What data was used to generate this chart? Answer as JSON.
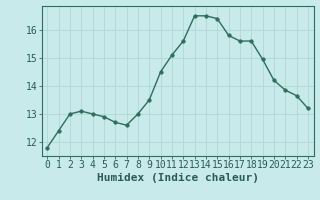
{
  "x": [
    0,
    1,
    2,
    3,
    4,
    5,
    6,
    7,
    8,
    9,
    10,
    11,
    12,
    13,
    14,
    15,
    16,
    17,
    18,
    19,
    20,
    21,
    22,
    23
  ],
  "y": [
    11.8,
    12.4,
    13.0,
    13.1,
    13.0,
    12.9,
    12.7,
    12.6,
    13.0,
    13.5,
    14.5,
    15.1,
    15.6,
    16.5,
    16.5,
    16.4,
    15.8,
    15.6,
    15.6,
    14.95,
    14.2,
    13.85,
    13.65,
    13.2
  ],
  "xlabel": "Humidex (Indice chaleur)",
  "ylim": [
    11.5,
    16.85
  ],
  "xlim": [
    -0.5,
    23.5
  ],
  "yticks": [
    12,
    13,
    14,
    15,
    16
  ],
  "xticks": [
    0,
    1,
    2,
    3,
    4,
    5,
    6,
    7,
    8,
    9,
    10,
    11,
    12,
    13,
    14,
    15,
    16,
    17,
    18,
    19,
    20,
    21,
    22,
    23
  ],
  "line_color": "#2e6e5e",
  "marker": "o",
  "marker_size": 2.5,
  "bg_color": "#c8eaea",
  "grid_color": "#b0d8d8",
  "xlabel_fontsize": 8,
  "tick_fontsize": 7,
  "spine_color": "#2e6e5e",
  "bottom_color": "#2a5a5a"
}
